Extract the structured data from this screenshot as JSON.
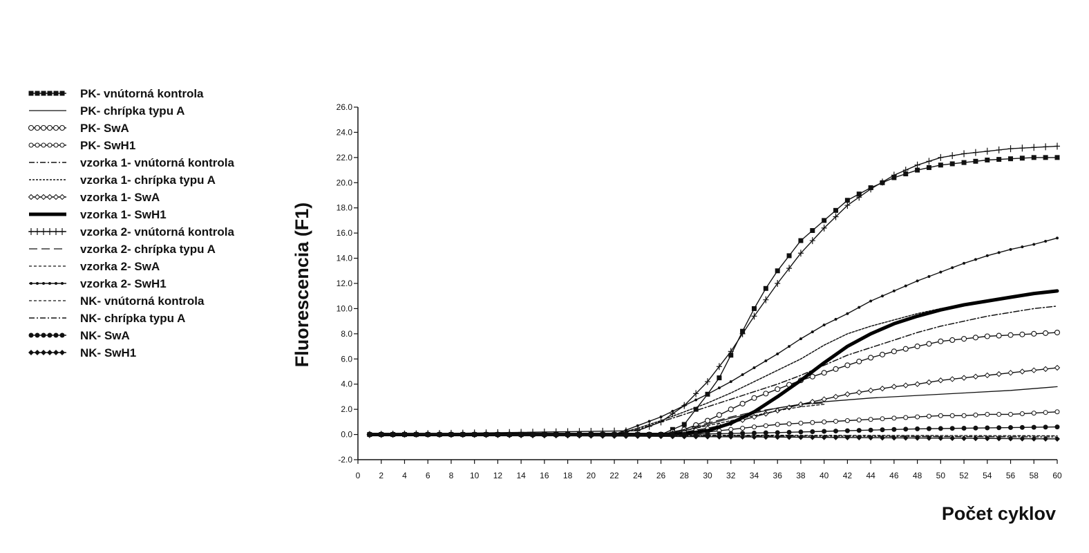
{
  "chart_data": {
    "type": "line",
    "title": "",
    "xlabel": "Počet cyklov",
    "ylabel": "Fluorescencia (F1)",
    "xlim": [
      0,
      60
    ],
    "ylim": [
      -2.0,
      26.0
    ],
    "x_ticks": [
      0,
      2,
      4,
      6,
      8,
      10,
      12,
      14,
      16,
      18,
      20,
      22,
      24,
      26,
      28,
      30,
      32,
      34,
      36,
      38,
      40,
      42,
      44,
      46,
      48,
      50,
      52,
      54,
      56,
      58,
      60
    ],
    "y_ticks": [
      -2.0,
      0.0,
      2.0,
      4.0,
      6.0,
      8.0,
      10.0,
      12.0,
      14.0,
      16.0,
      18.0,
      20.0,
      22.0,
      24.0,
      26.0
    ],
    "y_tick_labels": [
      "-2.0",
      "0.0",
      "2.0",
      "4.0",
      "6.0",
      "8.0",
      "10.0",
      "12.0",
      "14.0",
      "16.0",
      "18.0",
      "20.0",
      "22.0",
      "24.0",
      "26.0"
    ],
    "grid": false,
    "legend_position": "left",
    "series": [
      {
        "name": "PK- vnútorná kontrola",
        "style": "square-markers",
        "color": "#111111",
        "x": [
          1,
          26,
          28,
          29,
          30,
          31,
          32,
          33,
          34,
          35,
          36,
          37,
          38,
          40,
          42,
          44,
          46,
          48,
          50,
          52,
          54,
          56,
          58,
          60
        ],
        "y": [
          0,
          0,
          0.8,
          2.0,
          3.2,
          4.5,
          6.3,
          8.2,
          10.0,
          11.6,
          13.0,
          14.2,
          15.4,
          17.0,
          18.6,
          19.6,
          20.4,
          21.0,
          21.4,
          21.6,
          21.8,
          21.9,
          22.0,
          22.0
        ]
      },
      {
        "name": "PK- chrípka typu A",
        "style": "thin",
        "color": "#111111",
        "x": [
          1,
          26,
          28,
          30,
          32,
          34,
          36,
          38,
          40,
          44,
          48,
          52,
          56,
          60
        ],
        "y": [
          0,
          0,
          0.3,
          0.8,
          1.3,
          1.7,
          2.1,
          2.4,
          2.6,
          2.9,
          3.1,
          3.3,
          3.5,
          3.8
        ]
      },
      {
        "name": "PK- SwA",
        "style": "open-circles",
        "color": "#111111",
        "x": [
          1,
          26,
          28,
          30,
          32,
          34,
          36,
          38,
          40,
          42,
          44,
          46,
          48,
          50,
          52,
          54,
          56,
          58,
          60
        ],
        "y": [
          0,
          0,
          0.4,
          1.1,
          2.0,
          2.9,
          3.6,
          4.3,
          4.9,
          5.5,
          6.1,
          6.6,
          7.0,
          7.4,
          7.6,
          7.8,
          7.9,
          8.0,
          8.1
        ]
      },
      {
        "name": "PK- SwH1",
        "style": "open-circles-small",
        "color": "#111111",
        "x": [
          1,
          26,
          28,
          30,
          32,
          34,
          36,
          38,
          40,
          42,
          44,
          46,
          48,
          50,
          52,
          54,
          56,
          58,
          60
        ],
        "y": [
          0,
          0,
          0.1,
          0.2,
          0.4,
          0.6,
          0.8,
          0.9,
          1.0,
          1.1,
          1.2,
          1.3,
          1.4,
          1.5,
          1.5,
          1.6,
          1.6,
          1.7,
          1.8
        ]
      },
      {
        "name": "vzorka 1- vnútorná kontrola",
        "style": "dash-dot",
        "color": "#111111",
        "x": [
          1,
          22,
          24,
          26,
          28,
          30,
          32,
          34,
          36,
          38,
          40,
          42,
          44,
          46,
          48,
          50,
          52,
          54,
          56,
          58,
          60
        ],
        "y": [
          0,
          0,
          0.4,
          1.0,
          1.6,
          2.2,
          2.8,
          3.4,
          4.0,
          4.7,
          5.5,
          6.3,
          6.9,
          7.5,
          8.1,
          8.6,
          9.0,
          9.4,
          9.7,
          10.0,
          10.2
        ]
      },
      {
        "name": "vzorka 1- chrípka typu A",
        "style": "dotted-dense",
        "color": "#111111",
        "x": [
          1,
          22,
          24,
          26,
          28,
          30,
          32,
          34,
          36,
          38,
          40,
          42,
          44,
          46,
          48,
          50,
          52,
          54,
          56,
          58,
          60
        ],
        "y": [
          0,
          0,
          0.5,
          1.1,
          1.8,
          2.5,
          3.3,
          4.2,
          5.1,
          6.0,
          7.1,
          8.0,
          8.6,
          9.1,
          9.6,
          10.0,
          10.3,
          10.6,
          10.9,
          11.2,
          11.4
        ]
      },
      {
        "name": "vzorka 1- SwA",
        "style": "small-diamonds",
        "color": "#111111",
        "x": [
          1,
          26,
          28,
          30,
          32,
          34,
          36,
          38,
          40,
          42,
          44,
          46,
          48,
          50,
          52,
          54,
          56,
          58,
          60
        ],
        "y": [
          0,
          0,
          0.2,
          0.5,
          0.9,
          1.4,
          1.9,
          2.4,
          2.8,
          3.2,
          3.5,
          3.8,
          4.0,
          4.3,
          4.5,
          4.7,
          4.9,
          5.1,
          5.3
        ]
      },
      {
        "name": "vzorka 1- SwH1",
        "style": "thick",
        "color": "#000000",
        "x": [
          1,
          26,
          28,
          30,
          32,
          34,
          36,
          38,
          40,
          42,
          44,
          46,
          48,
          50,
          52,
          54,
          56,
          58,
          60
        ],
        "y": [
          0,
          0,
          0.05,
          0.3,
          0.9,
          1.8,
          3.0,
          4.3,
          5.7,
          7.0,
          8.0,
          8.8,
          9.4,
          9.9,
          10.3,
          10.6,
          10.9,
          11.2,
          11.4
        ]
      },
      {
        "name": "vzorka 2- vnútorná kontrola",
        "style": "plus-markers",
        "color": "#111111",
        "x": [
          1,
          24,
          26,
          28,
          30,
          32,
          34,
          36,
          38,
          40,
          42,
          44,
          46,
          48,
          50,
          52,
          54,
          56,
          58,
          60
        ],
        "y": [
          0,
          0.3,
          1.0,
          2.3,
          4.2,
          6.6,
          9.4,
          12.0,
          14.4,
          16.4,
          18.2,
          19.5,
          20.6,
          21.4,
          22.0,
          22.3,
          22.5,
          22.7,
          22.8,
          22.9
        ]
      },
      {
        "name": "vzorka 2- chrípka typu A",
        "style": "long-dash",
        "color": "#111111",
        "x": [
          1,
          26,
          28,
          30,
          32,
          34,
          36,
          38,
          40
        ],
        "y": [
          0,
          0,
          0.4,
          0.9,
          1.4,
          1.8,
          2.1,
          2.4,
          2.5
        ]
      },
      {
        "name": "vzorka 2- SwA",
        "style": "short-dash",
        "color": "#111111",
        "x": [
          1,
          26,
          28,
          30,
          32,
          34,
          36,
          38,
          40
        ],
        "y": [
          0,
          0,
          0.3,
          0.7,
          1.1,
          1.5,
          1.9,
          2.2,
          2.4
        ]
      },
      {
        "name": "vzorka 2- SwH1",
        "style": "tick-markers",
        "color": "#111111",
        "x": [
          1,
          22,
          24,
          26,
          28,
          30,
          32,
          34,
          36,
          38,
          40,
          42,
          44,
          46,
          48,
          50,
          52,
          54,
          56,
          58,
          60
        ],
        "y": [
          0,
          0,
          0.7,
          1.4,
          2.3,
          3.2,
          4.2,
          5.3,
          6.4,
          7.6,
          8.7,
          9.6,
          10.6,
          11.4,
          12.2,
          12.9,
          13.6,
          14.2,
          14.7,
          15.1,
          15.6
        ]
      },
      {
        "name": "NK- vnútorná kontrola",
        "style": "short-dash",
        "color": "#111111",
        "x": [
          1,
          60
        ],
        "y": [
          0,
          -0.1
        ]
      },
      {
        "name": "NK- chrípka typu A",
        "style": "dash-dot",
        "color": "#111111",
        "x": [
          1,
          60
        ],
        "y": [
          0,
          -0.2
        ]
      },
      {
        "name": "NK- SwA",
        "style": "filled-dots",
        "color": "#111111",
        "x": [
          1,
          26,
          30,
          36,
          40,
          44,
          48,
          52,
          56,
          60
        ],
        "y": [
          0,
          0,
          0.05,
          0.15,
          0.25,
          0.35,
          0.45,
          0.5,
          0.55,
          0.6
        ]
      },
      {
        "name": "NK- SwH1",
        "style": "filled-diamonds",
        "color": "#111111",
        "x": [
          1,
          60
        ],
        "y": [
          0,
          -0.35
        ]
      }
    ]
  }
}
